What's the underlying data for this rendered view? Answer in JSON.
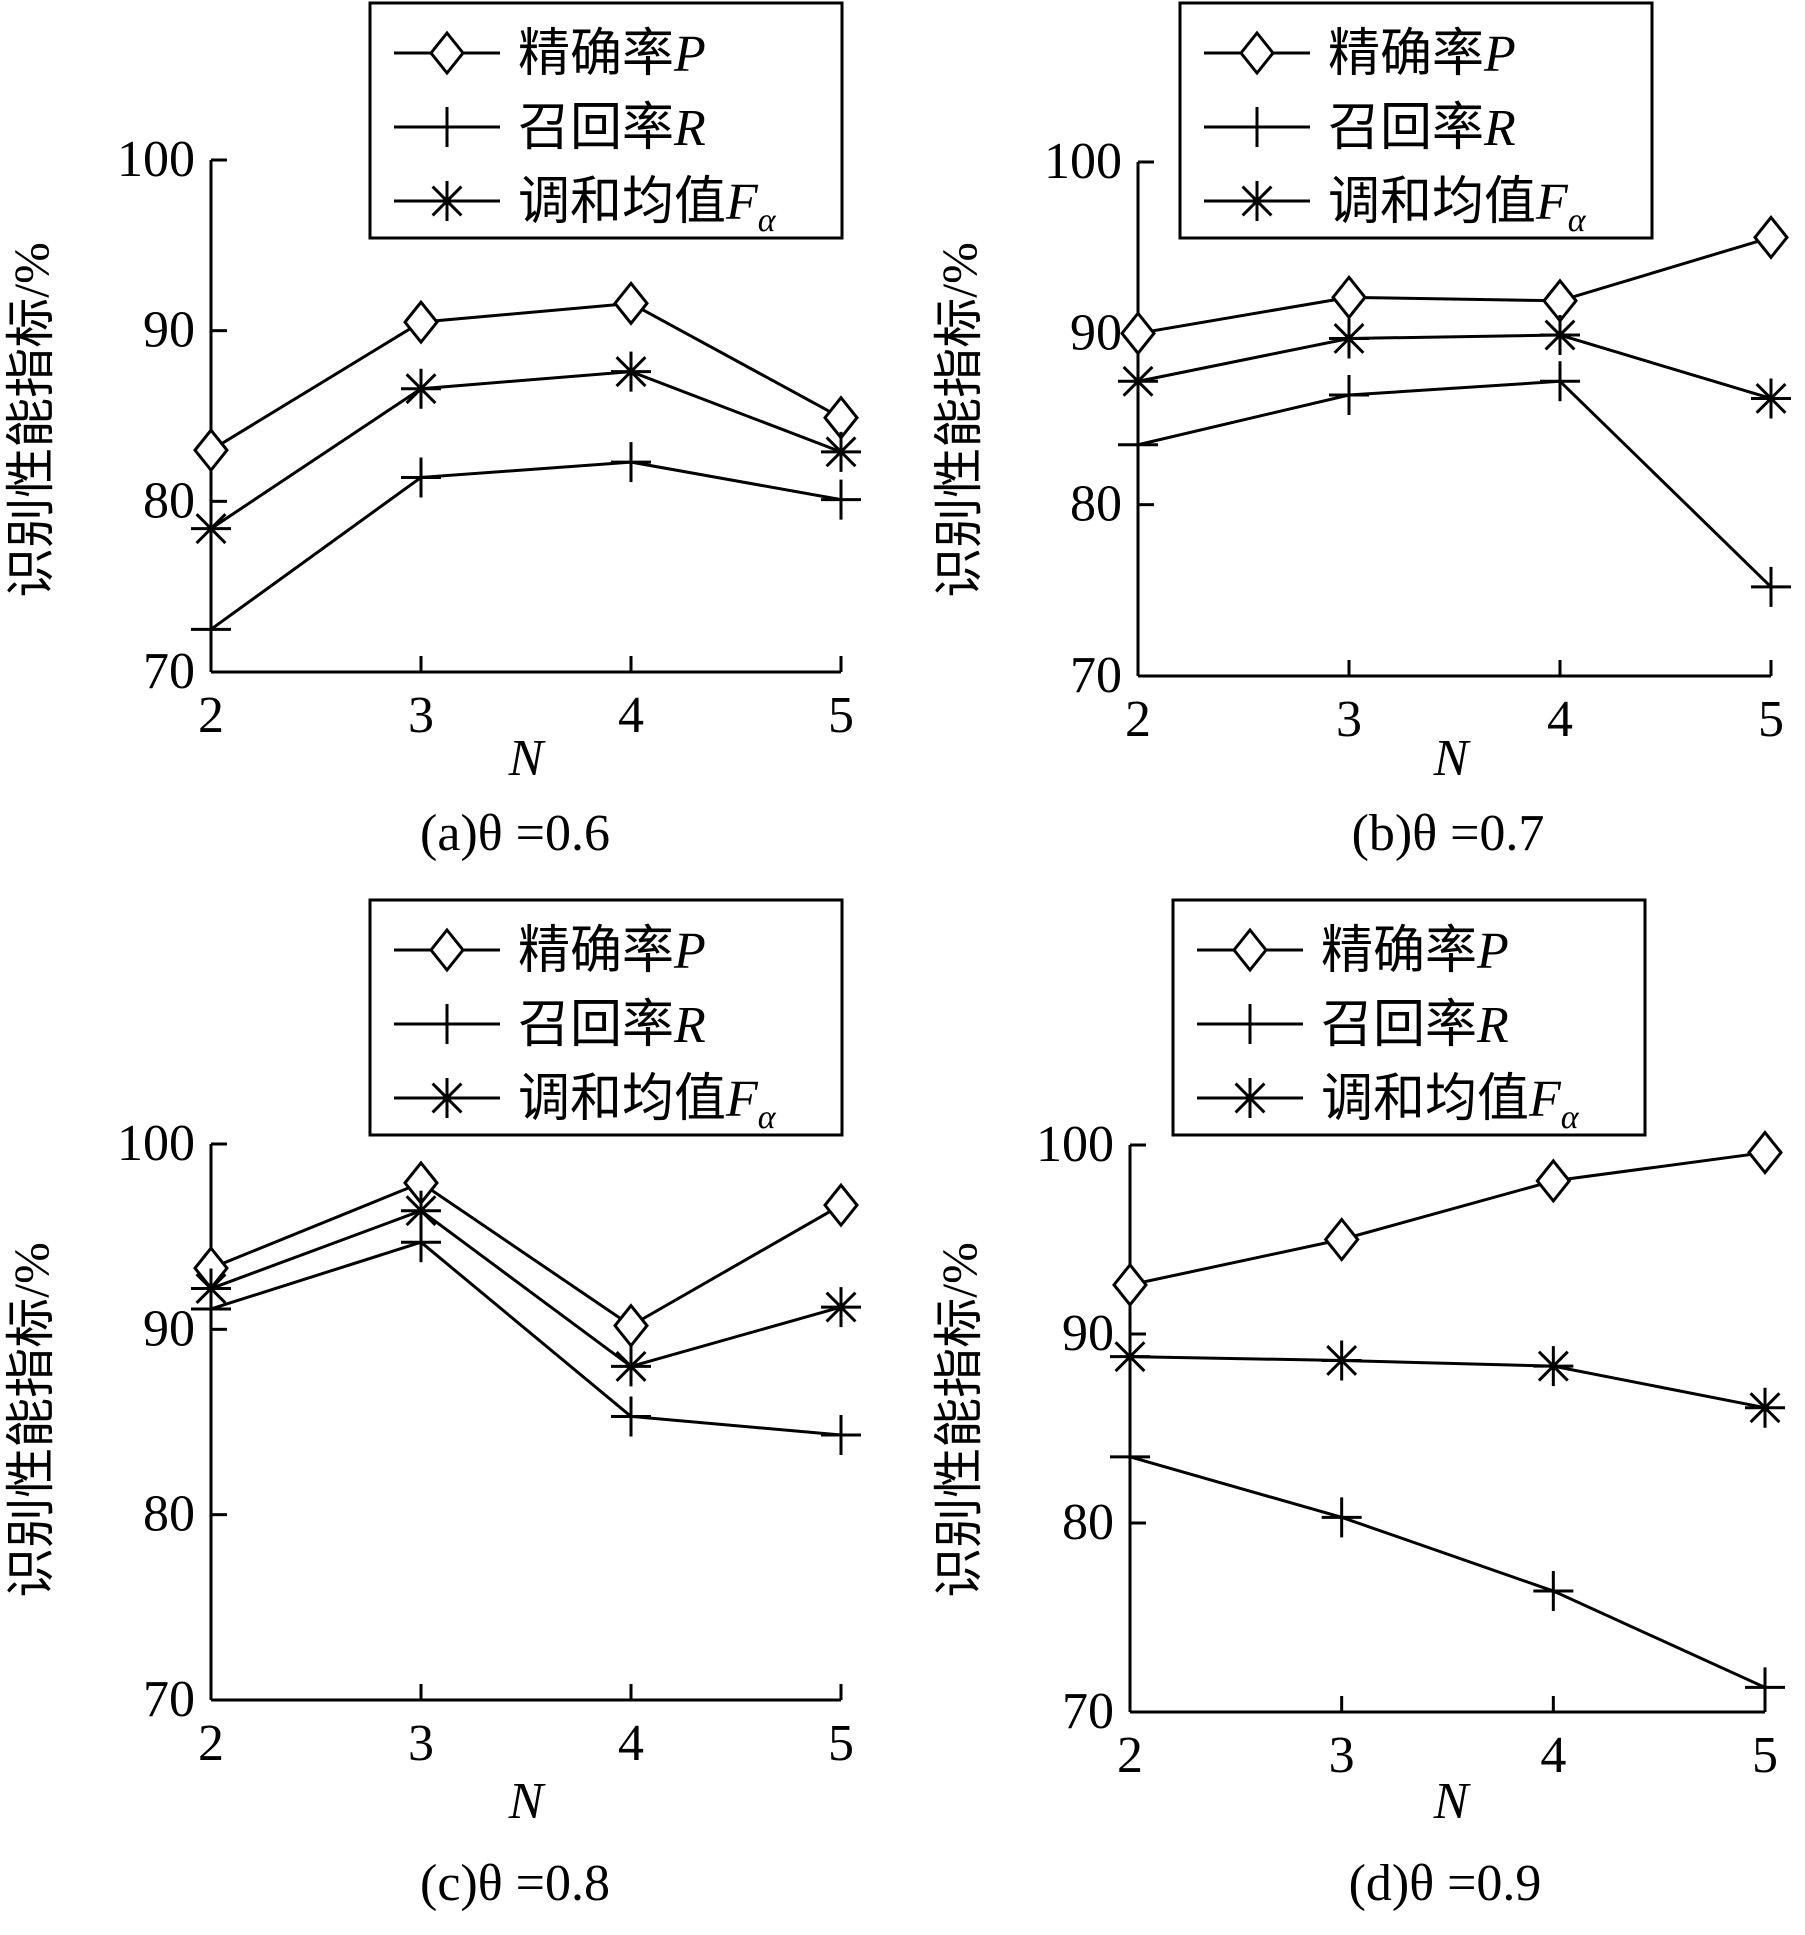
{
  "chart_data": [
    {
      "type": "line",
      "caption": "(a)θ =0.6",
      "xlabel": "N",
      "ylabel": "识别性能指标/%",
      "x": [
        2,
        3,
        4,
        5
      ],
      "xticks": [
        "2",
        "3",
        "4",
        "5"
      ],
      "ylim": [
        70,
        100
      ],
      "yticks": [
        "70",
        "80",
        "90",
        "100"
      ],
      "grid": false,
      "legend_position": "top",
      "series": [
        {
          "name": "精确率P",
          "marker": "diamond",
          "values": [
            83.0,
            90.5,
            91.6,
            84.9
          ]
        },
        {
          "name": "召回率R",
          "marker": "plus",
          "values": [
            72.5,
            81.4,
            82.3,
            80.1
          ]
        },
        {
          "name": "调和均值Fα",
          "marker": "asterisk",
          "values": [
            78.4,
            86.6,
            87.6,
            82.9
          ]
        }
      ]
    },
    {
      "type": "line",
      "caption": "(b)θ =0.7",
      "xlabel": "N",
      "ylabel": "识别性能指标/%",
      "x": [
        2,
        3,
        4,
        5
      ],
      "xticks": [
        "2",
        "3",
        "4",
        "5"
      ],
      "ylim": [
        70,
        100
      ],
      "yticks": [
        "70",
        "80",
        "90",
        "100"
      ],
      "grid": false,
      "legend_position": "top",
      "series": [
        {
          "name": "精确率P",
          "marker": "diamond",
          "values": [
            90.0,
            92.1,
            91.9,
            95.6
          ]
        },
        {
          "name": "召回率R",
          "marker": "plus",
          "values": [
            83.5,
            86.4,
            87.2,
            75.2
          ]
        },
        {
          "name": "调和均值Fα",
          "marker": "asterisk",
          "values": [
            87.2,
            89.7,
            89.9,
            86.2
          ]
        }
      ]
    },
    {
      "type": "line",
      "caption": "(c)θ =0.8",
      "xlabel": "N",
      "ylabel": "识别性能指标/%",
      "x": [
        2,
        3,
        4,
        5
      ],
      "xticks": [
        "2",
        "3",
        "4",
        "5"
      ],
      "ylim": [
        70,
        100
      ],
      "yticks": [
        "70",
        "80",
        "90",
        "100"
      ],
      "grid": false,
      "legend_position": "top",
      "series": [
        {
          "name": "精确率P",
          "marker": "diamond",
          "values": [
            93.3,
            97.9,
            90.2,
            96.7
          ]
        },
        {
          "name": "召回率R",
          "marker": "plus",
          "values": [
            91.1,
            94.7,
            85.3,
            84.3
          ]
        },
        {
          "name": "调和均值Fα",
          "marker": "asterisk",
          "values": [
            92.2,
            96.4,
            88.0,
            91.2
          ]
        }
      ]
    },
    {
      "type": "line",
      "caption": "(d)θ =0.9",
      "xlabel": "N",
      "ylabel": "识别性能指标/%",
      "x": [
        2,
        3,
        4,
        5
      ],
      "xticks": [
        "2",
        "3",
        "4",
        "5"
      ],
      "ylim": [
        70,
        100
      ],
      "yticks": [
        "70",
        "80",
        "90",
        "100"
      ],
      "grid": false,
      "legend_position": "top",
      "series": [
        {
          "name": "精确率P",
          "marker": "diamond",
          "values": [
            92.6,
            95.0,
            98.1,
            99.6
          ]
        },
        {
          "name": "召回率R",
          "marker": "plus",
          "values": [
            83.5,
            80.3,
            76.4,
            71.3
          ]
        },
        {
          "name": "调和均值Fα",
          "marker": "asterisk",
          "values": [
            88.8,
            88.6,
            88.3,
            86.1
          ]
        }
      ]
    }
  ]
}
